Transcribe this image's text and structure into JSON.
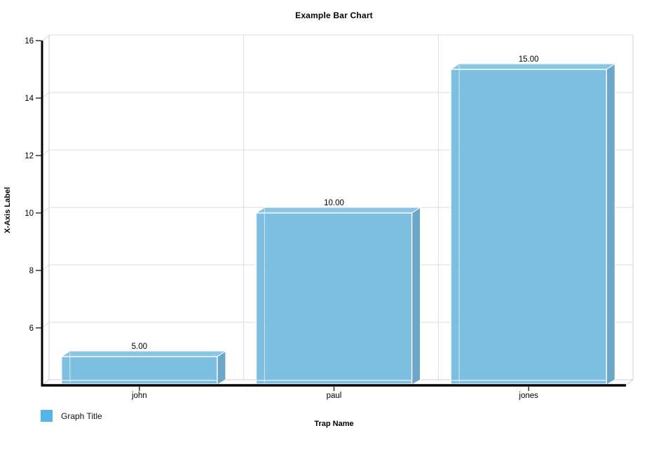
{
  "chart_data": {
    "type": "bar",
    "title": "Example Bar Chart",
    "xlabel": "Trap Name",
    "ylabel": "X-Axis Label",
    "categories": [
      "john",
      "paul",
      "jones"
    ],
    "series": [
      {
        "name": "Graph Title",
        "values": [
          5,
          10,
          15
        ]
      }
    ],
    "value_labels": [
      "5.00",
      "10.00",
      "15.00"
    ],
    "ylim": [
      4,
      16
    ],
    "yticks": [
      16,
      14,
      12,
      10,
      8,
      6
    ],
    "grid": true,
    "style_3d": true,
    "legend_position": "bottom-left",
    "colors": {
      "bar_front": "#77BCDF",
      "bar_top": "#8AC5E4",
      "bar_side": "#6CA7C7",
      "bar_edge": "#FFFFFF",
      "legend_swatch": "#54B4E6",
      "gridline": "#DDDDDD",
      "wall_border": "#CCCCCC",
      "axis": "#000000"
    }
  }
}
